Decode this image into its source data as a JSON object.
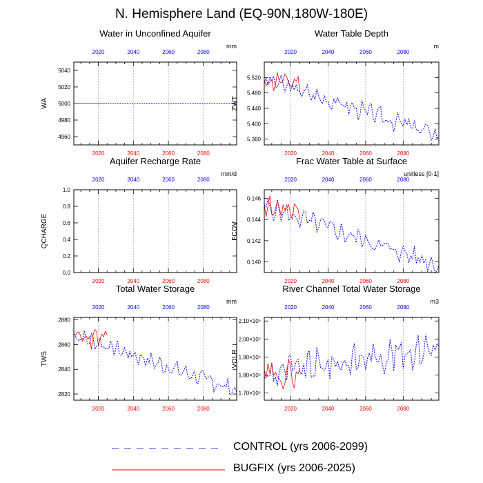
{
  "figure": {
    "title": "N. Hemisphere Land (EQ-90N,180W-180E)",
    "legend": [
      {
        "label": "CONTROL (yrs 2006-2099)",
        "style": "dashed",
        "color": "#0000ff"
      },
      {
        "label": "BUGFIX (yrs 2006-2025)",
        "style": "solid",
        "color": "#ff0000"
      }
    ],
    "colors": {
      "control": "#0000ff",
      "bugfix": "#ff0000",
      "top_axis": "#0000ff",
      "bottom_axis": "#ff0000",
      "gridline": "#9a9a9a"
    }
  },
  "chart_data": [
    {
      "type": "line",
      "id": "wa",
      "title": "Water in Unconfined Aquifer",
      "units": "mm",
      "ylabel": "WA",
      "xlim": [
        2006,
        2099
      ],
      "ylim": [
        4950,
        5050
      ],
      "yticks": [
        4960,
        4980,
        5000,
        5020,
        5040
      ],
      "ytick_labels": [
        "4960",
        "4980",
        "5000",
        "5020",
        "5040"
      ],
      "xticks": [
        2020,
        2040,
        2060,
        2080
      ],
      "series": [
        {
          "name": "CONTROL",
          "start": 2006,
          "shape": "flat",
          "level": 5000,
          "amp": 0,
          "years": 94
        },
        {
          "name": "BUGFIX",
          "start": 2006,
          "shape": "flat",
          "level": 5000,
          "amp": 0,
          "years": 20
        }
      ]
    },
    {
      "type": "line",
      "id": "zwt",
      "title": "Water Table Depth",
      "units": "m",
      "ylabel": "ZWT",
      "xlim": [
        2006,
        2099
      ],
      "ylim": [
        5.345,
        5.56
      ],
      "yticks": [
        5.36,
        5.4,
        5.44,
        5.48,
        5.52
      ],
      "ytick_labels": [
        "5.360",
        "5.400",
        "5.440",
        "5.480",
        "5.520"
      ],
      "xticks": [
        2020,
        2040,
        2060,
        2080
      ],
      "series": [
        {
          "name": "CONTROL",
          "start": 2006,
          "shape": "trend",
          "from": 5.515,
          "to": 5.37,
          "amp": 0.018,
          "seed": 3,
          "years": 94
        },
        {
          "name": "BUGFIX",
          "start": 2006,
          "shape": "trend",
          "from": 5.51,
          "to": 5.5,
          "amp": 0.02,
          "seed": 11,
          "years": 20
        }
      ]
    },
    {
      "type": "line",
      "id": "qcharge",
      "title": "Aquifer Recharge Rate",
      "units": "mm/d",
      "ylabel": "QCHARGE",
      "xlim": [
        2006,
        2099
      ],
      "ylim": [
        0,
        1
      ],
      "yticks": [
        0,
        0.2,
        0.4,
        0.6,
        0.8,
        1.0
      ],
      "ytick_labels": [
        "0.0",
        "0.2",
        "0.4",
        "0.6",
        "0.8",
        "1.0"
      ],
      "xticks": [
        2020,
        2040,
        2060,
        2080
      ],
      "series": []
    },
    {
      "type": "line",
      "id": "fcov",
      "title": "Frac Water Table at Surface",
      "units": "unitless [0-1]",
      "ylabel": "FCOV",
      "xlim": [
        2006,
        2099
      ],
      "ylim": [
        0.139,
        0.1468
      ],
      "yticks": [
        0.14,
        0.142,
        0.144,
        0.146
      ],
      "ytick_labels": [
        "0.140",
        "0.142",
        "0.144",
        "0.146"
      ],
      "xticks": [
        2020,
        2040,
        2060,
        2080
      ],
      "series": [
        {
          "name": "CONTROL",
          "start": 2006,
          "shape": "trend",
          "from": 0.1452,
          "to": 0.1397,
          "amp": 0.0007,
          "seed": 5,
          "years": 94
        },
        {
          "name": "BUGFIX",
          "start": 2006,
          "shape": "trend",
          "from": 0.1452,
          "to": 0.1445,
          "amp": 0.0008,
          "seed": 17,
          "years": 20
        }
      ]
    },
    {
      "type": "line",
      "id": "tws",
      "title": "Total Water Storage",
      "units": "mm",
      "ylabel": "TWS",
      "xlim": [
        2006,
        2099
      ],
      "ylim": [
        2815,
        2882
      ],
      "yticks": [
        2820,
        2840,
        2860,
        2880
      ],
      "ytick_labels": [
        "2820",
        "2840",
        "2860",
        "2880"
      ],
      "xticks": [
        2020,
        2040,
        2060,
        2080
      ],
      "series": [
        {
          "name": "CONTROL",
          "start": 2006,
          "shape": "trend",
          "from": 2868,
          "to": 2823,
          "amp": 5,
          "seed": 7,
          "years": 94
        },
        {
          "name": "BUGFIX",
          "start": 2006,
          "shape": "trend",
          "from": 2866,
          "to": 2860,
          "amp": 6,
          "seed": 23,
          "years": 20
        }
      ]
    },
    {
      "type": "line",
      "id": "volr",
      "title": "River Channel Total Water Storage",
      "units": "m3",
      "ylabel": "VOLR",
      "xlim": [
        2006,
        2099
      ],
      "ylim": [
        1.66,
        2.12
      ],
      "yticks": [
        1.7,
        1.8,
        1.9,
        2.0,
        2.1
      ],
      "ytick_labels": [
        "1.70×10⁶",
        "1.80×10⁶",
        "1.90×10⁶",
        "2.00×10⁶",
        "2.10×10⁶"
      ],
      "xticks": [
        2020,
        2040,
        2060,
        2080
      ],
      "series": [
        {
          "name": "CONTROL",
          "start": 2006,
          "shape": "trend",
          "from": 1.8,
          "to": 1.96,
          "amp": 0.07,
          "seed": 9,
          "years": 94
        },
        {
          "name": "BUGFIX",
          "start": 2006,
          "shape": "trend",
          "from": 1.8,
          "to": 1.82,
          "amp": 0.06,
          "seed": 29,
          "years": 20
        }
      ]
    }
  ]
}
